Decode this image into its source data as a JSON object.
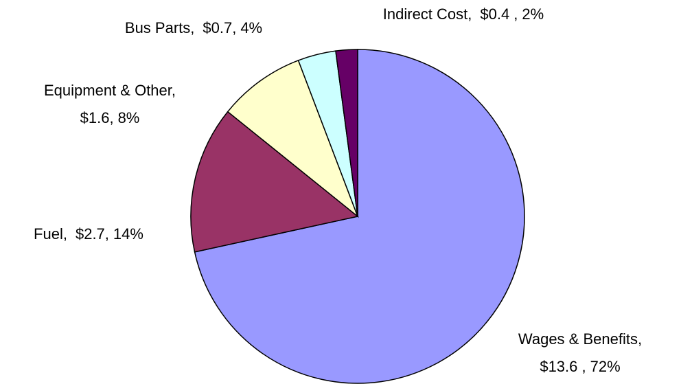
{
  "chart_data": {
    "type": "pie",
    "categories": [
      "Wages & Benefits,",
      "Fuel,",
      "Equipment & Other,",
      "Bus Parts,",
      "Indirect Cost,"
    ],
    "values": [
      13.6,
      2.7,
      1.6,
      0.7,
      0.4
    ],
    "value_labels": [
      "$13.6 ,",
      "$2.7,",
      "$1.6,",
      "$0.7,",
      "$0.4 ,"
    ],
    "percentages": [
      72,
      14,
      8,
      4,
      2
    ],
    "percentage_labels": [
      "72%",
      "14%",
      "8%",
      "4%",
      "2%"
    ],
    "colors": [
      "#9999ff",
      "#993366",
      "#ffffcc",
      "#ccffff",
      "#660066"
    ]
  }
}
